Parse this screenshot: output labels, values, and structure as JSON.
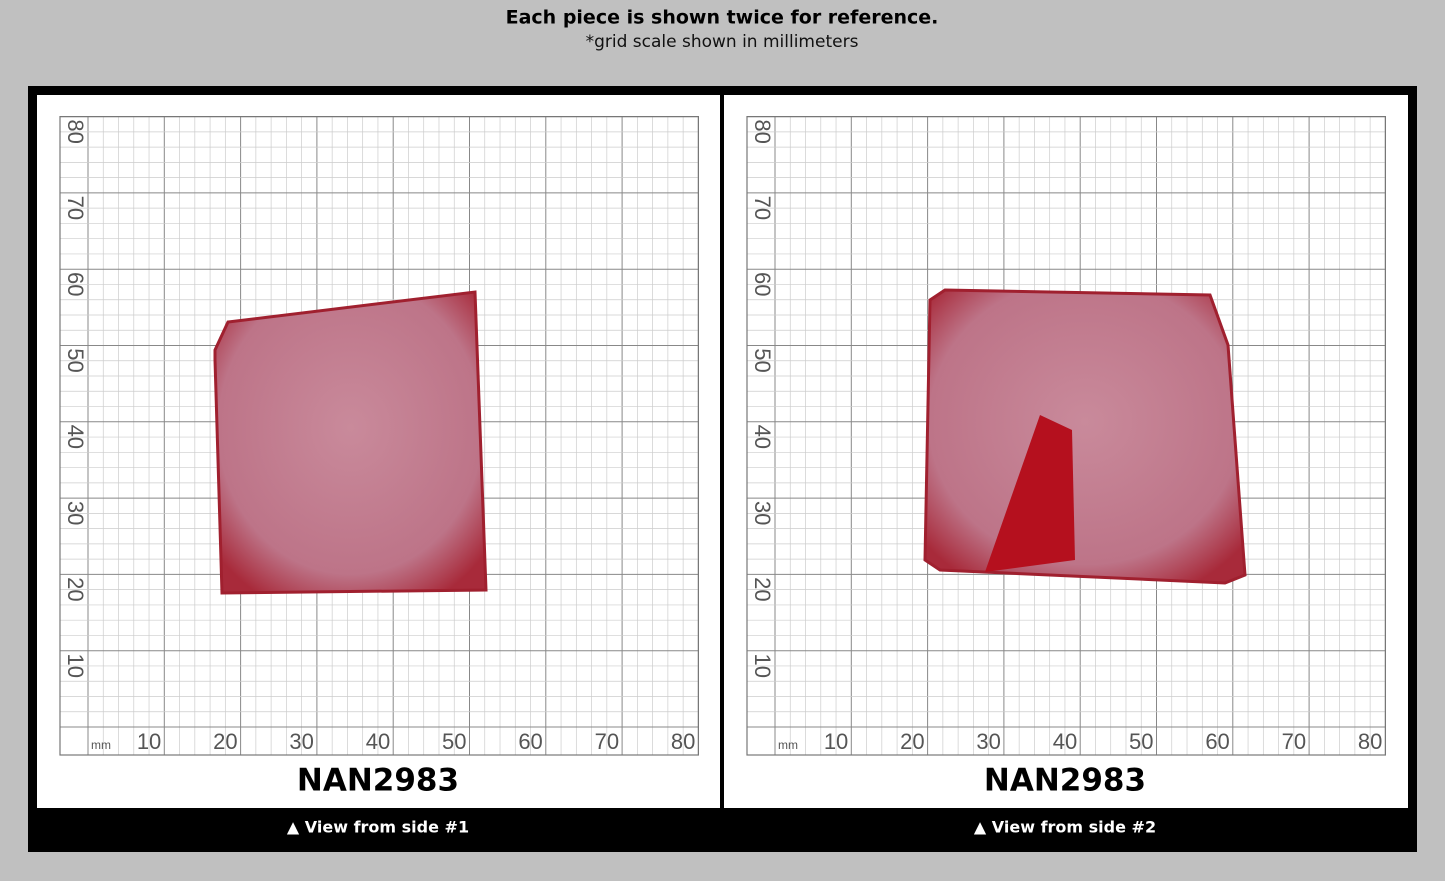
{
  "header": {
    "title": "Each piece is shown twice for reference.",
    "subtitle": "*grid scale shown in millimeters"
  },
  "panels": [
    {
      "code": "NAN2983",
      "caption": "▲ View from side #1",
      "grid": {
        "unit": "mm",
        "x_labels": [
          10,
          20,
          30,
          40,
          50,
          60,
          70,
          80
        ],
        "y_labels": [
          10,
          20,
          30,
          40,
          50,
          60,
          70,
          80
        ]
      }
    },
    {
      "code": "NAN2983",
      "caption": "▲ View from side #2",
      "grid": {
        "unit": "mm",
        "x_labels": [
          10,
          20,
          30,
          40,
          50,
          60,
          70,
          80
        ],
        "y_labels": [
          10,
          20,
          30,
          40,
          50,
          60,
          70,
          80
        ]
      }
    }
  ]
}
